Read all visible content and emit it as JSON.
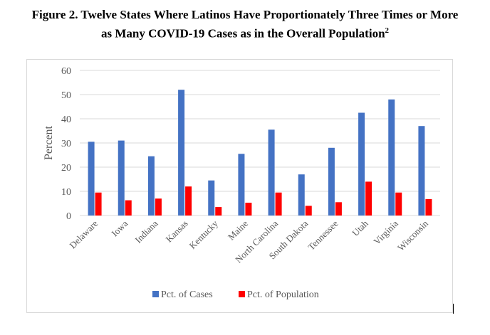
{
  "figure": {
    "title_line1": "Figure 2. Twelve States Where Latinos Have Proportionately Three Times or More",
    "title_line2": "as Many COVID-19 Cases as in the Overall Population",
    "footnote_marker": "2"
  },
  "chart_data": {
    "type": "bar",
    "ylabel": "Percent",
    "ylim": [
      0,
      60
    ],
    "yticks": [
      0,
      10,
      20,
      30,
      40,
      50,
      60
    ],
    "grid": true,
    "legend_position": "bottom",
    "categories": [
      "Delaware",
      "Iowa",
      "Indiana",
      "Kansas",
      "Kentucky",
      "Maine",
      "North Carolina",
      "South Dakota",
      "Tennessee",
      "Utah",
      "Virginia",
      "Wisconsin"
    ],
    "series": [
      {
        "name": "Pct. of Cases",
        "color": "#4472C4",
        "values": [
          30.5,
          31,
          24.5,
          52,
          14.5,
          25.5,
          35.5,
          17,
          28,
          42.5,
          48,
          37
        ]
      },
      {
        "name": "Pct. of Population",
        "color": "#FF0000",
        "values": [
          9.5,
          6.3,
          7,
          12,
          3.5,
          5.3,
          9.5,
          4,
          5.5,
          14,
          9.5,
          6.8
        ]
      }
    ]
  }
}
